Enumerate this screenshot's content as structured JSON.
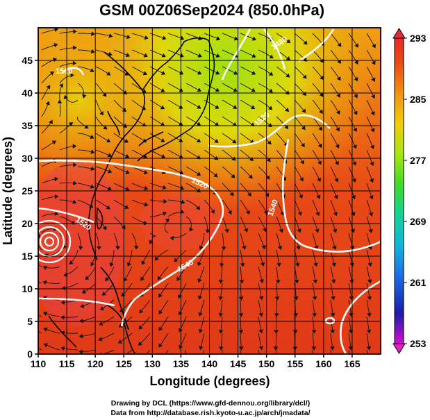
{
  "title": "GSM 00Z06Sep2024 (850.0hPa)",
  "x_axis": {
    "label": "Longitude (degrees)",
    "range": [
      110,
      170
    ],
    "ticks": [
      "110",
      "115",
      "120",
      "125",
      "130",
      "135",
      "140",
      "145",
      "150",
      "155",
      "160",
      "165"
    ]
  },
  "y_axis": {
    "label": "Latitude  (degrees)",
    "range": [
      0,
      50
    ],
    "ticks": [
      "0",
      "5",
      "10",
      "15",
      "20",
      "25",
      "30",
      "35",
      "40",
      "45"
    ]
  },
  "colorbar": {
    "range": [
      253,
      293
    ],
    "ticks": [
      "293",
      "285",
      "277",
      "269",
      "261",
      "253"
    ],
    "colors": [
      "#d60ad6",
      "#1c1ca8",
      "#1c6ce8",
      "#10b4dc",
      "#12d29a",
      "#3cdc26",
      "#a6e810",
      "#f2cc0a",
      "#f29210",
      "#e84a14",
      "#e82828"
    ]
  },
  "contour_labels": {
    "left": "1520",
    "upper_left": "1510",
    "center_west": "1520",
    "center": "1540",
    "right": "1540",
    "top_right": "1520",
    "upper_right": "1480"
  },
  "credits": {
    "line1": "Drawing by DCL (https://www.gfd-dennou.org/library/dcl/)",
    "line2": "Data from http://database.rish.kyoto-u.ac.jp/arch/jmadata/"
  }
}
